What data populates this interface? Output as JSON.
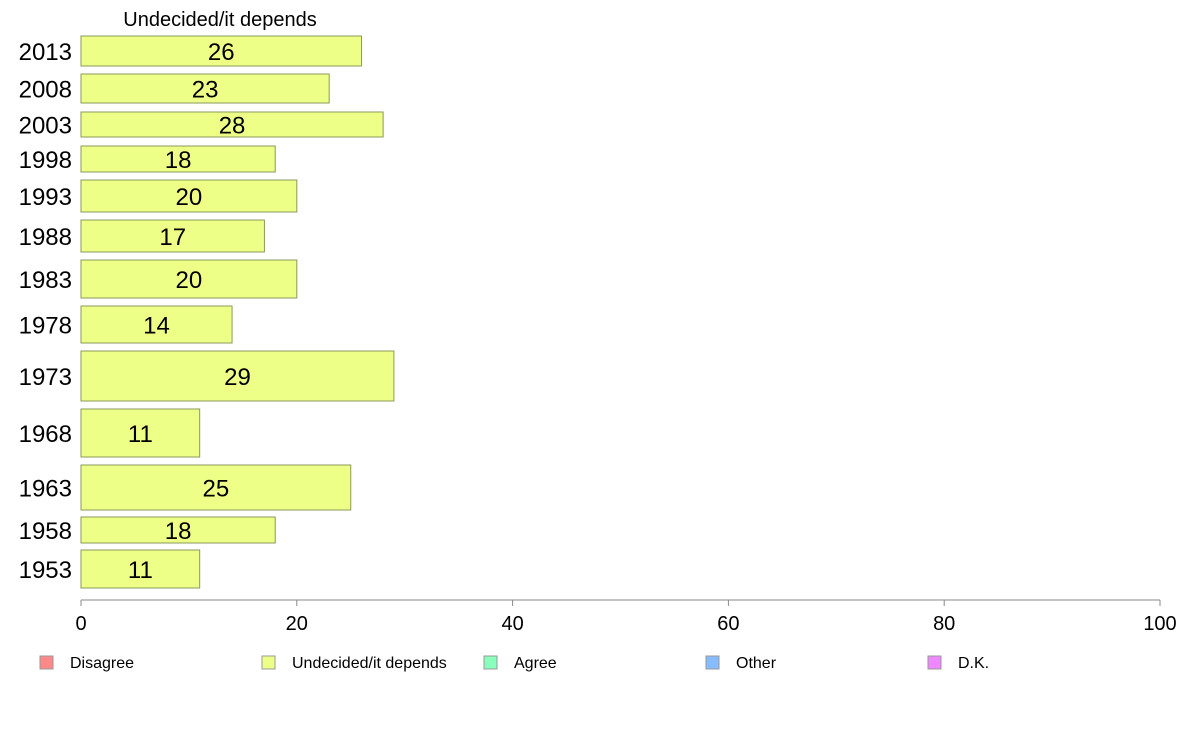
{
  "chart_data": {
    "type": "bar",
    "orientation": "horizontal",
    "title": "Undecided/it depends",
    "categories": [
      "2013",
      "2008",
      "2003",
      "1998",
      "1993",
      "1988",
      "1983",
      "1978",
      "1973",
      "1968",
      "1963",
      "1958",
      "1953"
    ],
    "series": [
      {
        "name": "Undecided/it depends",
        "color": "#eeff88",
        "values": [
          26,
          23,
          28,
          18,
          20,
          17,
          20,
          14,
          29,
          11,
          25,
          18,
          11
        ]
      }
    ],
    "value_labels": [
      "26",
      "23",
      "28",
      "18",
      "20",
      "17",
      "20",
      "14",
      "29",
      "11",
      "25",
      "18",
      "11"
    ],
    "xlim": [
      0,
      100
    ],
    "xticks": [
      "0",
      "20",
      "40",
      "60",
      "80",
      "100"
    ],
    "grid": false,
    "legend": {
      "placement": "bottom",
      "items": [
        {
          "label": "Disagree",
          "color": "#ff8888"
        },
        {
          "label": "Undecided/it depends",
          "color": "#eeff88"
        },
        {
          "label": "Agree",
          "color": "#88ffbb"
        },
        {
          "label": "Other",
          "color": "#88bbff"
        },
        {
          "label": "D.K.",
          "color": "#ee88ff"
        }
      ]
    }
  }
}
